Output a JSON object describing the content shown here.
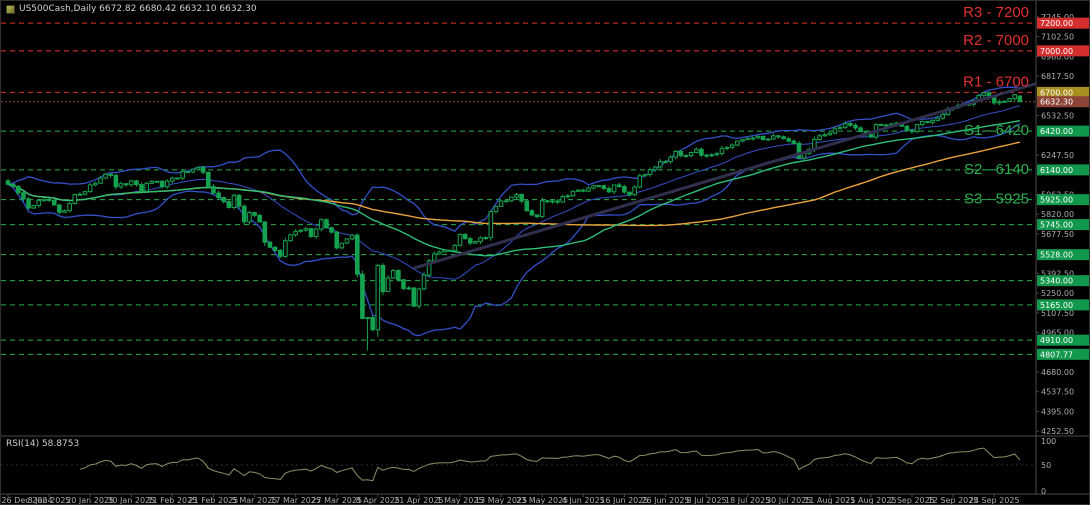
{
  "legend": {
    "text": "US500Cash,Daily 6672.82 6680.42 6632.10 6632.30"
  },
  "colors": {
    "background": "#000000",
    "candle_green": "#15A24E",
    "bull_body": "#0A0A0A",
    "bollinger": "#3350C8",
    "ma_fast_green": "#2EBE77",
    "ma_slow_orange": "#E8A33D",
    "trendline": "#30304E",
    "resistance": "#E03131",
    "support": "#2BAE4F",
    "axis_text": "#ABABAB",
    "box_red": "#D32F2F",
    "box_green": "#12984C",
    "box_gold": "#A98E20",
    "box_current": "#8C4437",
    "rsi_line": "#8F8F66",
    "separator": "#4A4A4A"
  },
  "levels": {
    "resistance": [
      {
        "label": "R3 - 7200",
        "price": 7200
      },
      {
        "label": "R2 - 7000",
        "price": 7000
      },
      {
        "label": "R1 - 6700",
        "price": 6700
      }
    ],
    "support": [
      {
        "label": "S1 - 6420",
        "price": 6420
      },
      {
        "label": "S2 - 6140",
        "price": 6140
      },
      {
        "label": "S3 - 5925",
        "price": 5925
      }
    ],
    "minor_support": [
      {
        "price": 5745
      },
      {
        "price": 5528
      },
      {
        "price": 5340
      },
      {
        "price": 5165
      },
      {
        "price": 4910
      },
      {
        "price": 4807.77
      }
    ]
  },
  "price_markers": [
    {
      "text": "7200.00",
      "price": 7200,
      "color": "box_red"
    },
    {
      "text": "7000.00",
      "price": 7000,
      "color": "box_red"
    },
    {
      "text": "6700.00",
      "price": 6700,
      "color": "box_gold"
    },
    {
      "text": "6632.30",
      "price": 6632.3,
      "color": "box_current"
    },
    {
      "text": "6420.00",
      "price": 6420,
      "color": "box_green"
    },
    {
      "text": "6140.00",
      "price": 6140,
      "color": "box_green"
    },
    {
      "text": "5925.00",
      "price": 5925,
      "color": "box_green"
    },
    {
      "text": "5745.00",
      "price": 5745,
      "color": "box_green"
    },
    {
      "text": "5528.00",
      "price": 5528,
      "color": "box_green"
    },
    {
      "text": "5340.00",
      "price": 5340,
      "color": "box_green"
    },
    {
      "text": "5165.00",
      "price": 5165,
      "color": "box_green"
    },
    {
      "text": "4910.00",
      "price": 4910,
      "color": "box_green"
    },
    {
      "text": "4807.77",
      "price": 4807.77,
      "color": "box_green"
    }
  ],
  "price_axis": {
    "ticks": [
      "7245.00",
      "7102.50",
      "6960.00",
      "6817.50",
      "6675.00",
      "6532.50",
      "6390.00",
      "6247.50",
      "6105.00",
      "5962.50",
      "5820.00",
      "5677.50",
      "5535.00",
      "5392.50",
      "5250.00",
      "5107.50",
      "4965.00",
      "4822.50",
      "4680.00",
      "4537.50",
      "4395.00",
      "4252.50"
    ]
  },
  "time_axis": {
    "labels": [
      "26 Dec 2024",
      "8 Jan 2025",
      "20 Jan 2025",
      "30 Jan 2025",
      "11 Feb 2025",
      "21 Feb 2025",
      "5 Mar 2025",
      "17 Mar 2025",
      "27 Mar 2025",
      "8 Apr 2025",
      "21 Apr 2025",
      "1 May 2025",
      "13 May 2025",
      "23 May 2025",
      "4 Jun 2025",
      "16 Jun 2025",
      "26 Jun 2025",
      "8 Jul 2025",
      "18 Jul 2025",
      "30 Jul 2025",
      "11 Aug 2025",
      "21 Aug 2025",
      "2 Sep 2025",
      "12 Sep 2025",
      "24 Sep 2025"
    ]
  },
  "rsi_panel": {
    "legend": "RSI(14) 58.8753",
    "value": 58.8753,
    "scale_labels": [
      "100",
      "50",
      "0"
    ]
  },
  "chart_data": {
    "type": "candlestick",
    "symbol": "US500Cash",
    "timeframe": "Daily",
    "last_quote": {
      "open": 6672.82,
      "high": 6680.42,
      "low": 6632.1,
      "close": 6632.3
    },
    "y_range": [
      4225,
      7360
    ],
    "candle_count": 198,
    "price_anchors": [
      [
        0,
        6037
      ],
      [
        2,
        5975
      ],
      [
        4,
        5870
      ],
      [
        6,
        5909
      ],
      [
        8,
        5918
      ],
      [
        10,
        5827
      ],
      [
        11,
        5836
      ],
      [
        13,
        5950
      ],
      [
        15,
        5997
      ],
      [
        17,
        6049
      ],
      [
        19,
        6119
      ],
      [
        20,
        6101
      ],
      [
        21,
        6012
      ],
      [
        23,
        6039
      ],
      [
        24,
        6071
      ],
      [
        25,
        6041
      ],
      [
        26,
        5995
      ],
      [
        28,
        6061
      ],
      [
        30,
        6026
      ],
      [
        32,
        6069
      ],
      [
        34,
        6115
      ],
      [
        36,
        6130
      ],
      [
        37,
        6144
      ],
      [
        38,
        6118
      ],
      [
        39,
        6013
      ],
      [
        41,
        5955
      ],
      [
        43,
        5861
      ],
      [
        44,
        5954
      ],
      [
        46,
        5778
      ],
      [
        47,
        5843
      ],
      [
        49,
        5770
      ],
      [
        50,
        5615
      ],
      [
        51,
        5572
      ],
      [
        53,
        5521
      ],
      [
        54,
        5639
      ],
      [
        55,
        5675
      ],
      [
        58,
        5712
      ],
      [
        59,
        5668
      ],
      [
        61,
        5777
      ],
      [
        62,
        5712
      ],
      [
        63,
        5693
      ],
      [
        64,
        5581
      ],
      [
        65,
        5612
      ],
      [
        66,
        5633
      ],
      [
        67,
        5671
      ],
      [
        68,
        5396
      ],
      [
        69,
        5074
      ],
      [
        70,
        5062
      ],
      [
        71,
        4983
      ],
      [
        72,
        5457
      ],
      [
        73,
        5268
      ],
      [
        74,
        5363
      ],
      [
        75,
        5406
      ],
      [
        77,
        5276
      ],
      [
        78,
        5283
      ],
      [
        79,
        5158
      ],
      [
        80,
        5288
      ],
      [
        81,
        5376
      ],
      [
        82,
        5485
      ],
      [
        83,
        5525
      ],
      [
        85,
        5561
      ],
      [
        86,
        5569
      ],
      [
        87,
        5604
      ],
      [
        88,
        5687
      ],
      [
        90,
        5607
      ],
      [
        92,
        5663
      ],
      [
        93,
        5660
      ],
      [
        94,
        5844
      ],
      [
        95,
        5887
      ],
      [
        97,
        5916
      ],
      [
        98,
        5958
      ],
      [
        99,
        5963
      ],
      [
        101,
        5845
      ],
      [
        103,
        5803
      ],
      [
        104,
        5922
      ],
      [
        107,
        5912
      ],
      [
        108,
        5936
      ],
      [
        110,
        5971
      ],
      [
        112,
        6000
      ],
      [
        113,
        6006
      ],
      [
        115,
        6022
      ],
      [
        117,
        5977
      ],
      [
        118,
        6033
      ],
      [
        120,
        5981
      ],
      [
        121,
        5968
      ],
      [
        122,
        6025
      ],
      [
        123,
        6092
      ],
      [
        125,
        6141
      ],
      [
        126,
        6173
      ],
      [
        127,
        6205
      ],
      [
        128,
        6198
      ],
      [
        130,
        6279
      ],
      [
        131,
        6230
      ],
      [
        133,
        6263
      ],
      [
        134,
        6280
      ],
      [
        135,
        6260
      ],
      [
        137,
        6244
      ],
      [
        139,
        6297
      ],
      [
        141,
        6306
      ],
      [
        143,
        6359
      ],
      [
        145,
        6380
      ],
      [
        147,
        6358
      ],
      [
        149,
        6389
      ],
      [
        150,
        6390
      ],
      [
        151,
        6371
      ],
      [
        152,
        6363
      ],
      [
        153,
        6339
      ],
      [
        154,
        6238
      ],
      [
        156,
        6300
      ],
      [
        158,
        6389
      ],
      [
        160,
        6420
      ],
      [
        161,
        6446
      ],
      [
        163,
        6466
      ],
      [
        166,
        6411
      ],
      [
        168,
        6370
      ],
      [
        169,
        6467
      ],
      [
        171,
        6466
      ],
      [
        174,
        6460
      ],
      [
        176,
        6415
      ],
      [
        178,
        6500
      ],
      [
        179,
        6482
      ],
      [
        181,
        6513
      ],
      [
        183,
        6587
      ],
      [
        184,
        6584
      ],
      [
        185,
        6615
      ],
      [
        187,
        6611
      ],
      [
        188,
        6632
      ],
      [
        190,
        6693
      ],
      [
        192,
        6638
      ],
      [
        193,
        6637
      ],
      [
        194,
        6644
      ],
      [
        195,
        6661
      ],
      [
        196,
        6688
      ],
      [
        197,
        6632.3
      ]
    ],
    "special_wicks": [
      {
        "index": 70,
        "low": 4835
      }
    ],
    "last_candle": {
      "open": 6672.82,
      "high": 6680.42,
      "low": 6632.1,
      "close": 6632.3
    },
    "indicators": [
      {
        "name": "Bollinger Bands",
        "period": 20,
        "deviation": 2
      },
      {
        "name": "MA fast",
        "method": "SMA",
        "period": 45
      },
      {
        "name": "MA slow",
        "method": "SMA",
        "period": 90
      },
      {
        "name": "RSI",
        "period": 14,
        "value": 58.8753
      }
    ],
    "trendline": {
      "from": {
        "index": 79,
        "price": 5430
      },
      "to": {
        "index": 203,
        "price": 6795
      }
    },
    "support_resistance": {
      "R3": 7200,
      "R2": 7000,
      "R1": 6700,
      "S1": 6420,
      "S2": 6140,
      "S3": 5925
    }
  }
}
